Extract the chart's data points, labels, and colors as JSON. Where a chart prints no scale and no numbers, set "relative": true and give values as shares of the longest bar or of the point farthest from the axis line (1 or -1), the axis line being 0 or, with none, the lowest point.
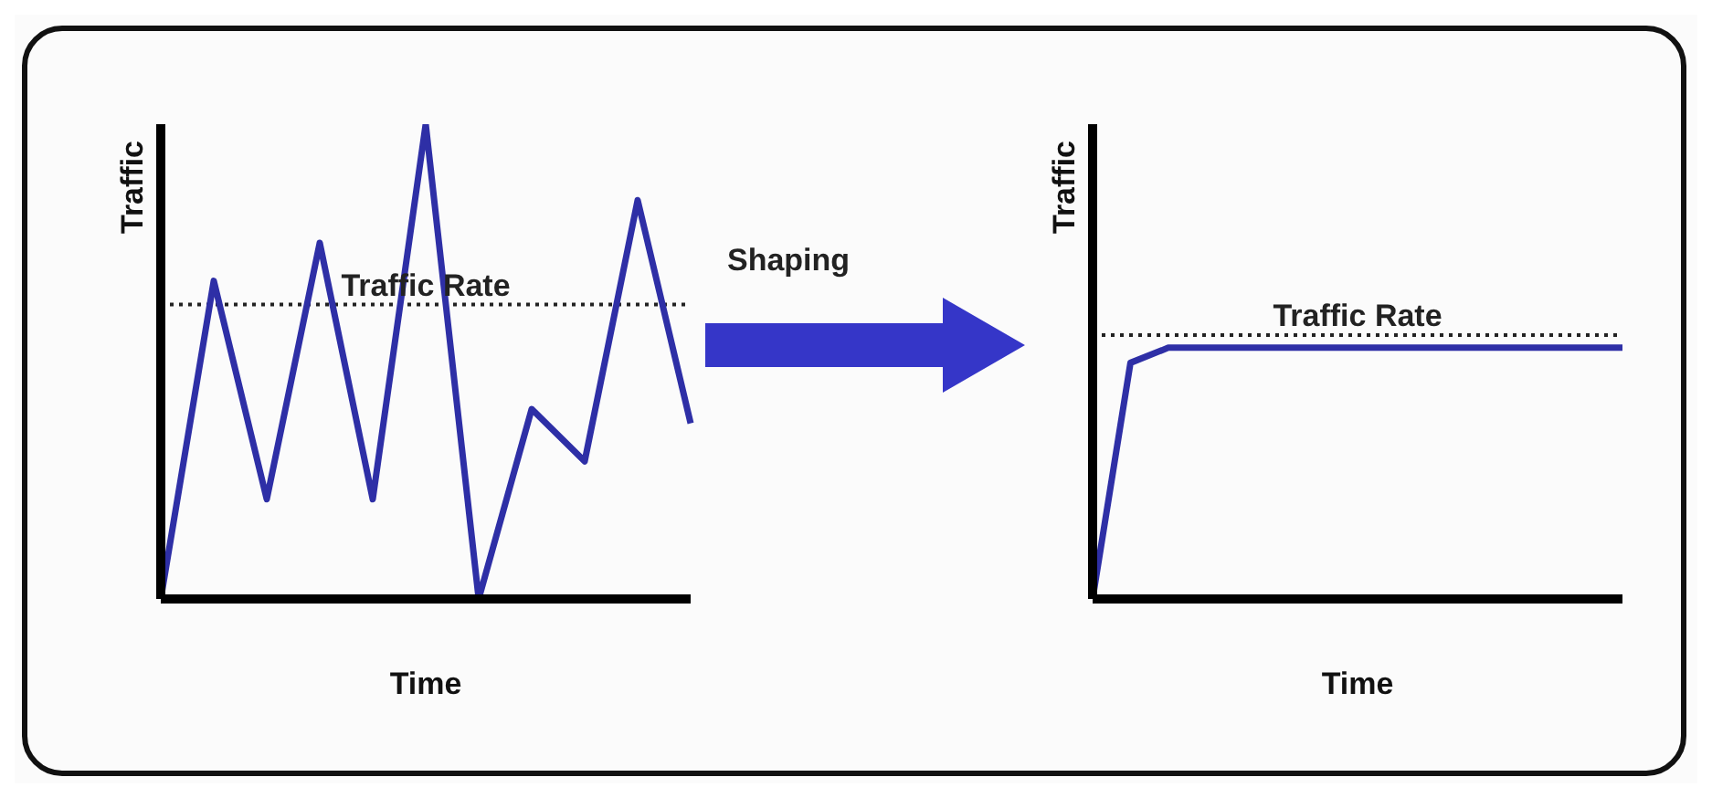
{
  "chart_data": [
    {
      "type": "line",
      "ylabel": "Traffic",
      "xlabel": "Time",
      "relative": true,
      "annotations": [
        "Shaping"
      ],
      "categories": [
        null,
        null,
        null,
        null,
        null,
        null,
        null,
        null,
        null,
        null,
        null
      ],
      "series": [
        {
          "color": "#2e2fa6",
          "values": [
            0,
            0.67,
            0.21,
            0.75,
            0.21,
            1,
            0,
            0.4,
            0.29,
            0.84,
            0.37
          ]
        }
      ],
      "ref_lines": [
        {
          "axis": "y",
          "value": 0.62,
          "label": "Traffic Rate",
          "color": "#222222",
          "line_style": "dotted"
        }
      ]
    },
    {
      "type": "line",
      "ylabel": "Traffic",
      "xlabel": "Time",
      "relative": true,
      "categories": [
        null,
        null,
        null,
        null,
        null,
        null,
        null,
        null,
        null,
        null,
        null,
        null,
        null,
        null,
        null
      ],
      "series": [
        {
          "color": "#2e2fa6",
          "values": [
            0,
            0.94,
            1,
            1,
            1,
            1,
            1,
            1,
            1,
            1,
            1,
            1,
            1,
            1,
            1
          ]
        }
      ],
      "ref_lines": [
        {
          "axis": "y",
          "value": 1.05,
          "label": "Traffic Rate",
          "color": "#222222",
          "line_style": "dotted"
        }
      ]
    }
  ]
}
